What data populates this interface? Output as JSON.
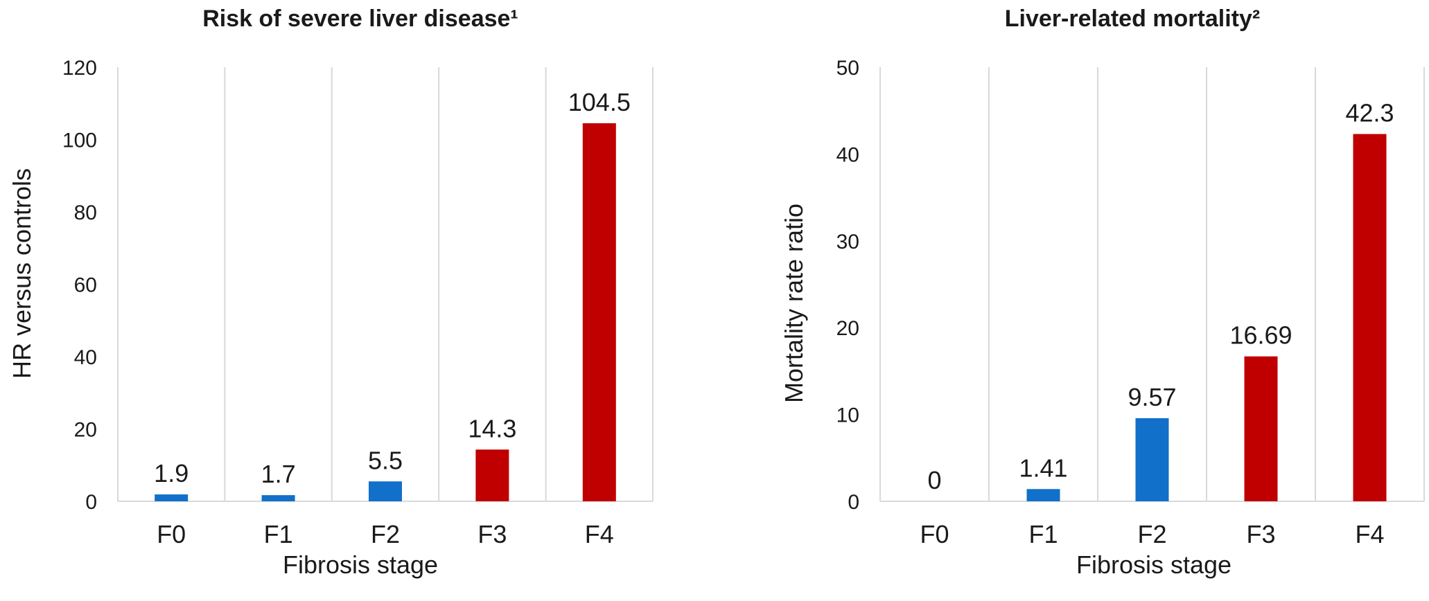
{
  "chart_data": [
    {
      "type": "bar",
      "title": "Risk of severe liver disease¹",
      "xlabel": "Fibrosis stage",
      "ylabel": "HR versus controls",
      "categories": [
        "F0",
        "F1",
        "F2",
        "F3",
        "F4"
      ],
      "values": [
        1.9,
        1.7,
        5.5,
        14.3,
        104.5
      ],
      "value_labels": [
        "1.9",
        "1.7",
        "5.5",
        "14.3",
        "104.5"
      ],
      "bar_colors": [
        "#1170c9",
        "#1170c9",
        "#1170c9",
        "#c00000",
        "#c00000"
      ],
      "ylim": [
        0,
        120
      ],
      "yticks": [
        0,
        20,
        40,
        60,
        80,
        100,
        120
      ],
      "grid": "vertical category separators"
    },
    {
      "type": "bar",
      "title": "Liver-related mortality²",
      "xlabel": "Fibrosis stage",
      "ylabel": "Mortality rate ratio",
      "categories": [
        "F0",
        "F1",
        "F2",
        "F3",
        "F4"
      ],
      "values": [
        0,
        1.41,
        9.57,
        16.69,
        42.3
      ],
      "value_labels": [
        "0",
        "1.41",
        "9.57",
        "16.69",
        "42.3"
      ],
      "bar_colors": [
        "#1170c9",
        "#1170c9",
        "#1170c9",
        "#c00000",
        "#c00000"
      ],
      "ylim": [
        0,
        50
      ],
      "yticks": [
        0,
        10,
        20,
        30,
        40,
        50
      ],
      "grid": "vertical category separators"
    }
  ]
}
